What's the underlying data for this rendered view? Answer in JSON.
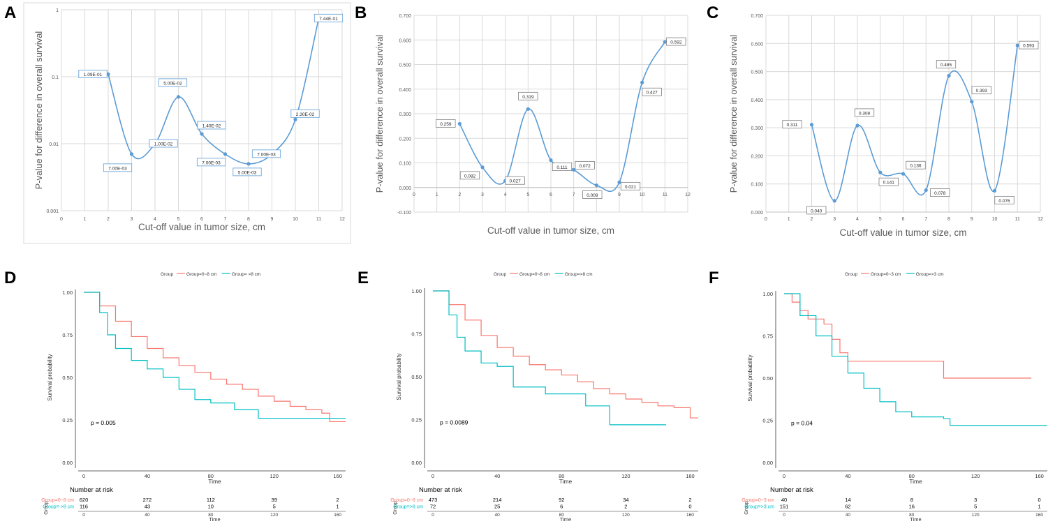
{
  "colors": {
    "line_blue": "#5b9bd5",
    "km_red": "#f8766d",
    "km_teal": "#00bfc4",
    "grid": "#d9d9d9",
    "axis_text": "#595959"
  },
  "chart_data": [
    {
      "id": "A",
      "type": "line",
      "panel_label": "A",
      "scale": "log",
      "xlabel": "Cut-off value in tumor size, cm",
      "ylabel": "P-value for difference in overall survival",
      "xlim": [
        0,
        12
      ],
      "xticks": [
        "0",
        "1",
        "2",
        "3",
        "4",
        "5",
        "6",
        "7",
        "8",
        "9",
        "10",
        "11",
        "12"
      ],
      "ylim": [
        0.001,
        1
      ],
      "yticks": [
        0.001,
        0.01,
        0.1,
        1
      ],
      "ytick_labels": [
        "0.001",
        "0.01",
        "0.1",
        "1"
      ],
      "x": [
        2,
        3,
        4,
        5,
        6,
        7,
        8,
        9,
        10,
        11
      ],
      "values": [
        0.109,
        0.007,
        0.01,
        0.05,
        0.014,
        0.007,
        0.005,
        0.007,
        0.023,
        0.744
      ],
      "labels": [
        "1.09E-01",
        "7.00E-03",
        "1.00E-02",
        "5.00E-02",
        "1.40E-02",
        "7.00E-03",
        "5.00E-03",
        "7.00E-03",
        "2.30E-02",
        "7.44E-01"
      ]
    },
    {
      "id": "B",
      "type": "line",
      "panel_label": "B",
      "scale": "linear",
      "xlabel": "Cut-off value in tumor size, cm",
      "ylabel": "P-value for difference in overall survival",
      "xlim": [
        0,
        12
      ],
      "xticks": [
        "0",
        "1",
        "2",
        "3",
        "4",
        "5",
        "6",
        "7",
        "8",
        "9",
        "10",
        "11",
        "12"
      ],
      "ylim": [
        -0.1,
        0.7
      ],
      "yticks": [
        -0.1,
        0,
        0.1,
        0.2,
        0.3,
        0.4,
        0.5,
        0.6,
        0.7
      ],
      "ytick_labels": [
        "-0.100",
        "0.000",
        "0.100",
        "0.200",
        "0.300",
        "0.400",
        "0.500",
        "0.600",
        "0.700"
      ],
      "x": [
        2,
        3,
        4,
        5,
        6,
        7,
        8,
        9,
        10,
        11
      ],
      "values": [
        0.259,
        0.082,
        0.027,
        0.319,
        0.111,
        0.072,
        0.009,
        0.021,
        0.427,
        0.592
      ],
      "labels": [
        "0.259",
        "0.082",
        "0.027",
        "0.319",
        "0.111",
        "0.072",
        "0.009",
        "0.021",
        "0.427",
        "0.592"
      ]
    },
    {
      "id": "C",
      "type": "line",
      "panel_label": "C",
      "scale": "linear",
      "xlabel": "Cut-off value in tumor size, cm",
      "ylabel": "P-value for difference in overall survival",
      "xlim": [
        0,
        12
      ],
      "xticks": [
        "0",
        "1",
        "2",
        "3",
        "4",
        "5",
        "6",
        "7",
        "8",
        "9",
        "10",
        "11",
        "12"
      ],
      "ylim": [
        0,
        0.7
      ],
      "yticks": [
        0,
        0.1,
        0.2,
        0.3,
        0.4,
        0.5,
        0.6,
        0.7
      ],
      "ytick_labels": [
        "0.000",
        "0.100",
        "0.200",
        "0.300",
        "0.400",
        "0.500",
        "0.600",
        "0.700"
      ],
      "x": [
        2,
        3,
        4,
        5,
        6,
        7,
        8,
        9,
        10,
        11
      ],
      "values": [
        0.311,
        0.04,
        0.308,
        0.141,
        0.136,
        0.078,
        0.485,
        0.393,
        0.076,
        0.593
      ],
      "labels": [
        "0.311",
        "0.040",
        "0.308",
        "0.141",
        "0.136",
        "0.078",
        "0.485",
        "0.393",
        "0.076",
        "0.593"
      ]
    },
    {
      "id": "D",
      "type": "line",
      "panel_label": "D",
      "legend_title": "Group",
      "xlabel": "Time",
      "ylabel": "Survival probability",
      "xlim": [
        0,
        165
      ],
      "xticks": [
        "0",
        "40",
        "80",
        "120",
        "160"
      ],
      "ylim": [
        0,
        1
      ],
      "yticks": [
        "0.00",
        "0.25",
        "0.50",
        "0.75",
        "1.00"
      ],
      "pvalue": "p = 0.005",
      "risk_title": "Number at risk",
      "risk_axis": "Group",
      "series": [
        {
          "name": "Group=0~8 cm",
          "x": [
            0,
            10,
            20,
            30,
            40,
            50,
            60,
            70,
            80,
            90,
            100,
            110,
            120,
            130,
            140,
            150,
            155,
            165
          ],
          "values": [
            1,
            0.92,
            0.83,
            0.74,
            0.67,
            0.615,
            0.57,
            0.53,
            0.49,
            0.46,
            0.43,
            0.39,
            0.36,
            0.33,
            0.31,
            0.29,
            0.24,
            0.24
          ],
          "risk": [
            "620",
            "272",
            "112",
            "39",
            "2"
          ]
        },
        {
          "name": "Group= >8 cm",
          "x": [
            0,
            10,
            15,
            20,
            30,
            40,
            50,
            60,
            70,
            80,
            90,
            95,
            105,
            110,
            120,
            150,
            165
          ],
          "values": [
            1,
            0.88,
            0.75,
            0.67,
            0.6,
            0.55,
            0.5,
            0.43,
            0.37,
            0.35,
            0.35,
            0.31,
            0.31,
            0.26,
            0.26,
            0.26,
            0.26
          ],
          "risk": [
            "116",
            "43",
            "10",
            "5",
            "1"
          ]
        }
      ]
    },
    {
      "id": "E",
      "type": "line",
      "panel_label": "E",
      "legend_title": "Group",
      "xlabel": "Time",
      "ylabel": "Survival probability",
      "xlim": [
        0,
        165
      ],
      "xticks": [
        "0",
        "40",
        "80",
        "120",
        "160"
      ],
      "ylim": [
        0,
        1
      ],
      "yticks": [
        "0.00",
        "0.25",
        "0.50",
        "0.75",
        "1.00"
      ],
      "pvalue": "p = 0.0089",
      "risk_title": "Number at risk",
      "risk_axis": "Group",
      "series": [
        {
          "name": "Group=0~8 cm",
          "x": [
            0,
            10,
            20,
            30,
            40,
            50,
            60,
            70,
            80,
            90,
            100,
            110,
            120,
            130,
            140,
            150,
            160,
            165
          ],
          "values": [
            1,
            0.92,
            0.83,
            0.74,
            0.67,
            0.62,
            0.57,
            0.54,
            0.51,
            0.47,
            0.43,
            0.4,
            0.37,
            0.35,
            0.33,
            0.32,
            0.26,
            0.26
          ],
          "risk": [
            "473",
            "214",
            "92",
            "34",
            "2"
          ]
        },
        {
          "name": "Group=>8 cm",
          "x": [
            0,
            10,
            15,
            20,
            30,
            40,
            50,
            60,
            70,
            85,
            95,
            105,
            110,
            145
          ],
          "values": [
            1,
            0.86,
            0.73,
            0.65,
            0.58,
            0.56,
            0.44,
            0.44,
            0.4,
            0.4,
            0.33,
            0.33,
            0.22,
            0.22
          ],
          "risk": [
            "72",
            "25",
            "6",
            "2",
            "0"
          ]
        }
      ]
    },
    {
      "id": "F",
      "type": "line",
      "panel_label": "F",
      "legend_title": "Group",
      "xlabel": "Time",
      "ylabel": "Survival probability",
      "xlim": [
        0,
        165
      ],
      "xticks": [
        "0",
        "40",
        "80",
        "120",
        "160"
      ],
      "ylim": [
        0,
        1
      ],
      "yticks": [
        "0.00",
        "0.25",
        "0.50",
        "0.75",
        "1.00"
      ],
      "pvalue": "p = 0.04",
      "risk_title": "Number at risk",
      "risk_axis": "Group",
      "series": [
        {
          "name": "Group=0~3 cm",
          "x": [
            0,
            5,
            10,
            15,
            20,
            25,
            30,
            35,
            40,
            45,
            95,
            100,
            155
          ],
          "values": [
            1,
            0.95,
            0.9,
            0.85,
            0.85,
            0.82,
            0.73,
            0.65,
            0.6,
            0.6,
            0.6,
            0.5,
            0.5
          ],
          "risk": [
            "40",
            "14",
            "8",
            "3",
            "0"
          ]
        },
        {
          "name": "Group=>3 cm",
          "x": [
            0,
            10,
            20,
            30,
            40,
            50,
            60,
            70,
            80,
            90,
            100,
            104,
            165
          ],
          "values": [
            1,
            0.87,
            0.75,
            0.63,
            0.53,
            0.44,
            0.36,
            0.3,
            0.27,
            0.27,
            0.26,
            0.22,
            0.22
          ],
          "risk": [
            "151",
            "62",
            "16",
            "5",
            "1"
          ]
        }
      ]
    }
  ]
}
